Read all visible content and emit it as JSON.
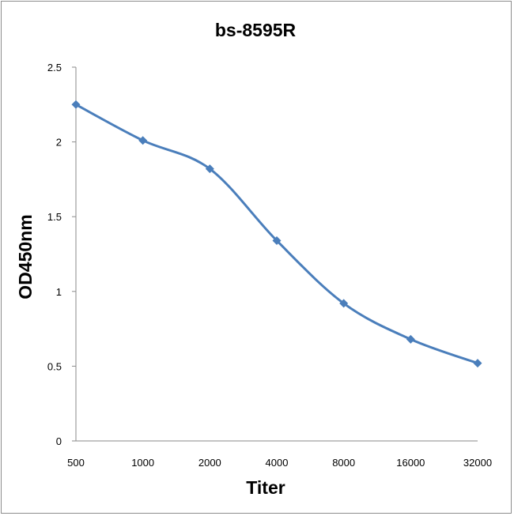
{
  "chart_data": {
    "type": "line",
    "title": "bs-8595R",
    "xlabel": "Titer",
    "ylabel": "OD450nm",
    "categories": [
      "500",
      "1000",
      "2000",
      "4000",
      "8000",
      "16000",
      "32000"
    ],
    "series": [
      {
        "values": [
          2.25,
          2.01,
          1.82,
          1.34,
          0.92,
          0.68,
          0.52
        ],
        "color": "#4a7ebb",
        "marker": "diamond",
        "smooth": true
      }
    ],
    "ylim": [
      0,
      2.5
    ],
    "yticks": [
      "0",
      "0.5",
      "1",
      "1.5",
      "2",
      "2.5"
    ],
    "grid": false,
    "legend": "none"
  }
}
